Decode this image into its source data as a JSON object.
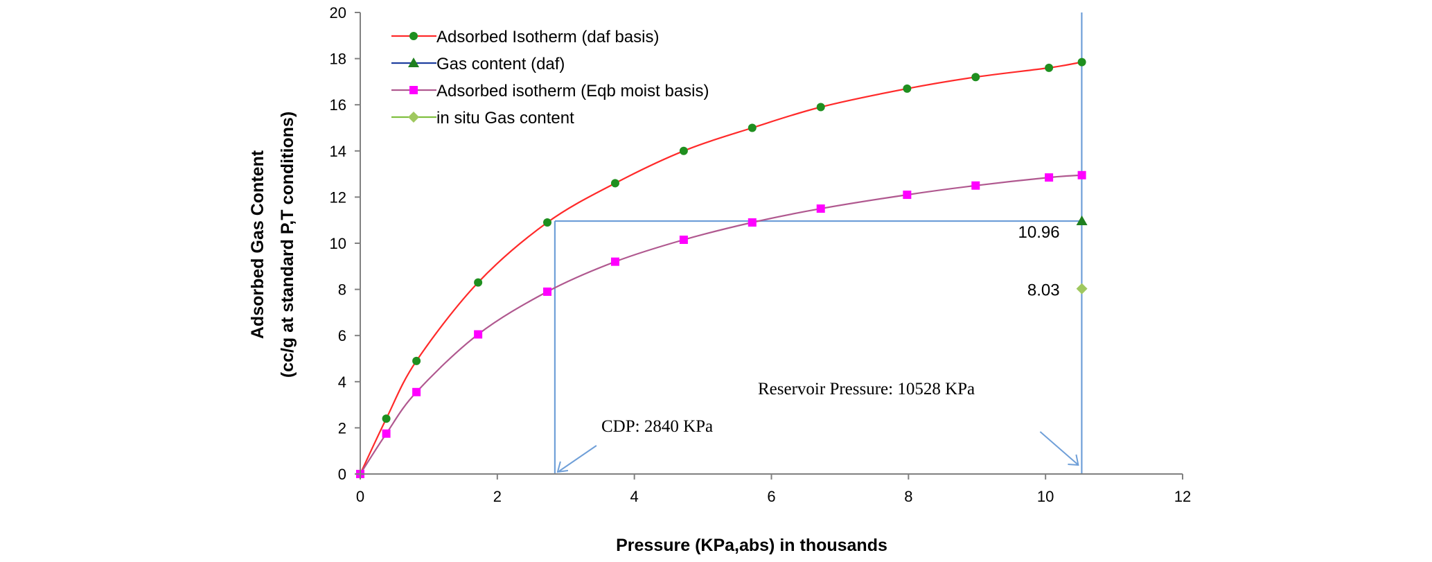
{
  "chart_data": {
    "type": "line",
    "title": "",
    "xlabel": "Pressure (KPa,abs) in thousands",
    "ylabel_line1": "Adsorbed Gas Content",
    "ylabel_line2": "(cc/g at standard P,T conditions)",
    "xlim": [
      0,
      12
    ],
    "ylim": [
      0,
      20
    ],
    "xticks": [
      "0",
      "2",
      "4",
      "6",
      "8",
      "10",
      "12"
    ],
    "yticks": [
      "0",
      "2",
      "4",
      "6",
      "8",
      "10",
      "12",
      "14",
      "16",
      "18",
      "20"
    ],
    "legend_position": "top-left",
    "grid": false,
    "series": [
      {
        "name": "Adsorbed Isotherm (daf basis)",
        "color": "#ff2a2a",
        "marker": "circle",
        "marker_color": "#1f8f1f",
        "x": [
          0,
          0.38,
          0.82,
          1.72,
          2.73,
          3.72,
          4.72,
          5.72,
          6.72,
          7.98,
          8.98,
          10.05,
          10.53
        ],
        "y": [
          0,
          2.4,
          4.9,
          8.3,
          10.9,
          12.6,
          14.0,
          15.0,
          15.9,
          16.7,
          17.2,
          17.6,
          17.85
        ]
      },
      {
        "name": "Gas content (daf)",
        "color": "#1f3f9f",
        "marker": "triangle",
        "marker_color": "#1f7f1f",
        "x": [
          10.53
        ],
        "y": [
          10.96
        ]
      },
      {
        "name": "Adsorbed isotherm (Eqb moist basis)",
        "color": "#b0588f",
        "marker": "square",
        "marker_color": "#ff00ff",
        "x": [
          0,
          0.38,
          0.82,
          1.72,
          2.73,
          3.72,
          4.72,
          5.72,
          6.72,
          7.98,
          8.98,
          10.05,
          10.53
        ],
        "y": [
          0,
          1.75,
          3.55,
          6.05,
          7.9,
          9.2,
          10.15,
          10.9,
          11.5,
          12.1,
          12.5,
          12.85,
          12.95
        ]
      },
      {
        "name": "in situ Gas content",
        "color": "#7fbf3f",
        "marker": "diamond",
        "marker_color": "#9fc85f",
        "x": [
          10.53
        ],
        "y": [
          8.03
        ]
      }
    ],
    "data_labels": [
      {
        "text": "10.96",
        "x": 10.53,
        "y": 10.96
      },
      {
        "text": "8.03",
        "x": 10.53,
        "y": 8.03
      }
    ],
    "annotations": {
      "cdp": "CDP: 2840 KPa",
      "reservoir": "Reservoir Pressure:  10528 KPa"
    },
    "reference_lines": {
      "cdp_pressure": 2.84,
      "reservoir_pressure": 10.528,
      "gas_content": 10.96,
      "color": "#6f9fd8"
    }
  }
}
